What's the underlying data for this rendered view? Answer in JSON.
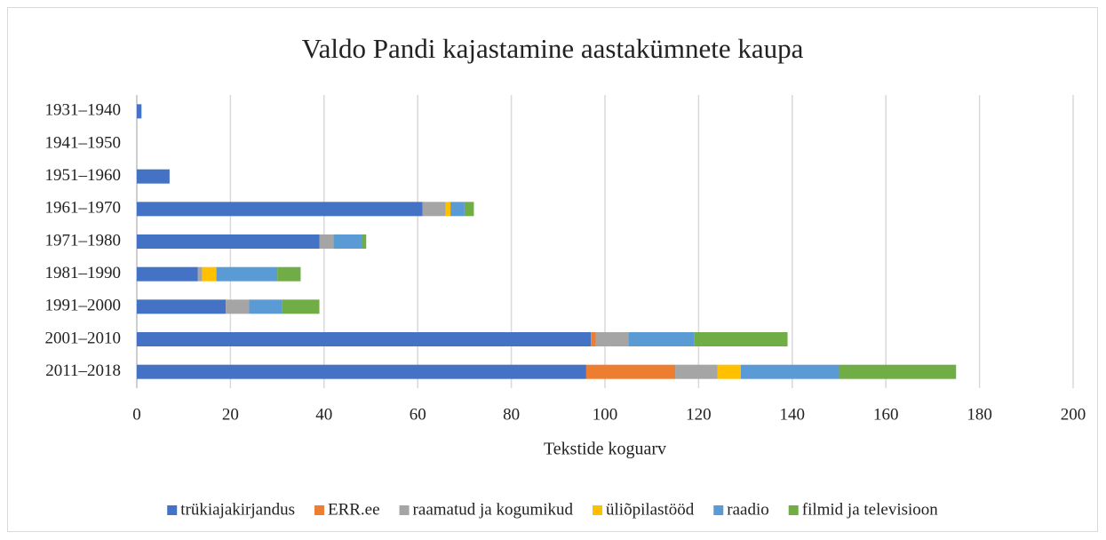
{
  "chart_data": {
    "type": "stacked-barh",
    "title": "Valdo Pandi kajastamine aastakümnete kaupa",
    "xlabel": "Tekstide koguarv",
    "categories": [
      "1931–1940",
      "1941–1950",
      "1951–1960",
      "1961–1970",
      "1971–1980",
      "1981–1990",
      "1991–2000",
      "2001–2010",
      "2011–2018"
    ],
    "series": [
      {
        "name": "trükiajakirjandus",
        "color": "#4472c4",
        "values": [
          1,
          0,
          7,
          61,
          39,
          13,
          19,
          97,
          96
        ]
      },
      {
        "name": "ERR.ee",
        "color": "#ed7d31",
        "values": [
          0,
          0,
          0,
          0,
          0,
          0,
          0,
          1,
          19
        ]
      },
      {
        "name": "raamatud ja kogumikud",
        "color": "#a5a5a5",
        "values": [
          0,
          0,
          0,
          5,
          3,
          1,
          5,
          7,
          9
        ]
      },
      {
        "name": "üliõpilastööd",
        "color": "#ffc000",
        "values": [
          0,
          0,
          0,
          1,
          0,
          3,
          0,
          0,
          5
        ]
      },
      {
        "name": "raadio",
        "color": "#5b9bd5",
        "values": [
          0,
          0,
          0,
          3,
          6,
          13,
          7,
          14,
          21
        ]
      },
      {
        "name": "filmid ja televisioon",
        "color": "#70ad47",
        "values": [
          0,
          0,
          0,
          2,
          1,
          5,
          8,
          20,
          25
        ]
      }
    ],
    "xlim": [
      0,
      200
    ],
    "xticks": [
      0,
      20,
      40,
      60,
      80,
      100,
      120,
      140,
      160,
      180,
      200
    ],
    "grid": true,
    "legend": "bottom"
  }
}
